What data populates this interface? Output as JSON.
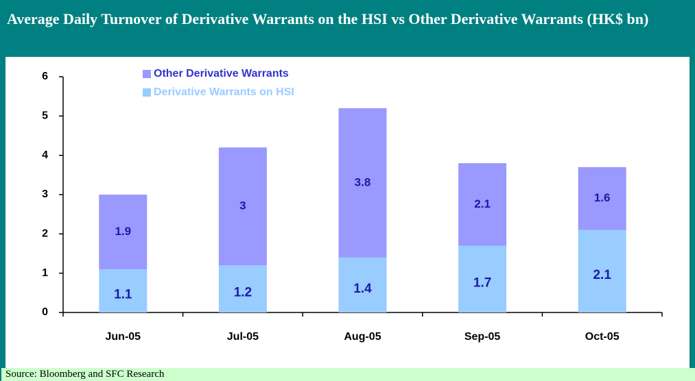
{
  "chart_data": {
    "type": "stacked_bar",
    "title": "Average Daily Turnover of Derivative Warrants on the HSI vs Other Derivative Warrants (HK$ bn)",
    "source": "Source: Bloomberg and SFC Research",
    "categories": [
      "Jun-05",
      "Jul-05",
      "Aug-05",
      "Sep-05",
      "Oct-05"
    ],
    "series": [
      {
        "name": "Derivative Warrants on HSI",
        "color": "#99ccff",
        "values": [
          1.1,
          1.2,
          1.4,
          1.7,
          2.1
        ]
      },
      {
        "name": "Other Derivative Warrants",
        "color": "#9999ff",
        "values": [
          1.9,
          3.0,
          3.8,
          2.1,
          1.6
        ]
      }
    ],
    "ylim": [
      0,
      6
    ],
    "yticks": [
      0,
      1,
      2,
      3,
      4,
      5,
      6
    ],
    "legend": "top-left"
  }
}
